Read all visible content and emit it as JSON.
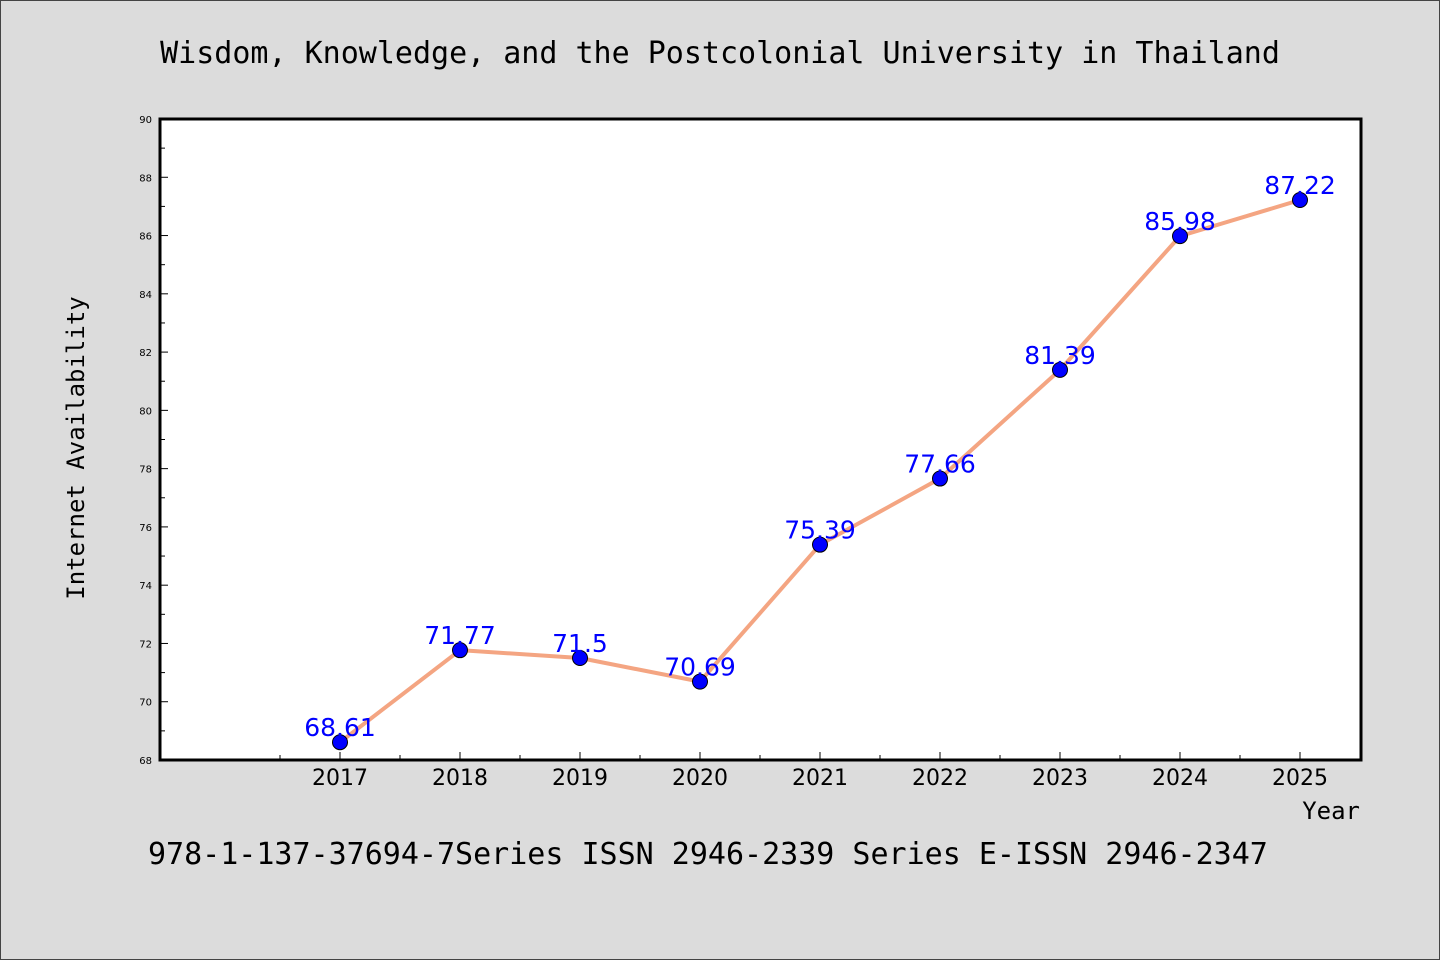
{
  "chart_data": {
    "type": "line",
    "title": "Wisdom, Knowledge, and the Postcolonial University in Thailand",
    "xlabel": "Year",
    "ylabel": "Internet Availability",
    "categories": [
      "2017",
      "2018",
      "2019",
      "2020",
      "2021",
      "2022",
      "2023",
      "2024",
      "2025"
    ],
    "values": [
      68.61,
      71.77,
      71.5,
      70.69,
      75.39,
      77.66,
      81.39,
      85.98,
      87.22
    ],
    "data_labels": [
      "68.61",
      "71.77",
      "71.5",
      "70.69",
      "75.39",
      "77.66",
      "81.39",
      "85.98",
      "87.22"
    ],
    "ylim": [
      68,
      90
    ],
    "y_ticks": [
      68,
      70,
      72,
      74,
      76,
      78,
      80,
      82,
      84,
      86,
      88,
      90
    ],
    "y_tick_labels": [
      "68",
      "70",
      "72",
      "74",
      "76",
      "78",
      "80",
      "82",
      "84",
      "86",
      "88",
      "90"
    ],
    "grid": false,
    "line_color": "#f4a582",
    "marker_color": "#0000ff",
    "label_color": "#0000ff"
  },
  "footer": "978-1-137-37694-7Series ISSN 2946-2339 Series E-ISSN 2946-2347"
}
